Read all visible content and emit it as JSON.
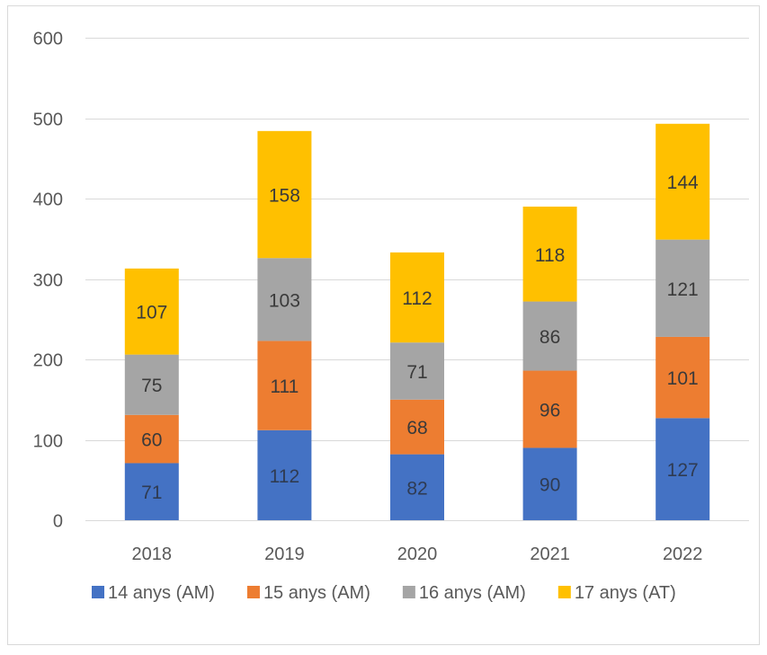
{
  "chart_data": {
    "type": "bar",
    "stacked": true,
    "categories": [
      "2018",
      "2019",
      "2020",
      "2021",
      "2022"
    ],
    "series": [
      {
        "name": "14 anys (AM)",
        "color": "#4472C4",
        "label_color": "#2f3b52",
        "values": [
          71,
          112,
          82,
          90,
          127
        ]
      },
      {
        "name": "15 anys (AM)",
        "color": "#ED7D31",
        "label_color": "#3a3a3a",
        "values": [
          60,
          111,
          68,
          96,
          101
        ]
      },
      {
        "name": "16 anys (AM)",
        "color": "#A5A5A5",
        "label_color": "#3a3a3a",
        "values": [
          75,
          103,
          71,
          86,
          121
        ]
      },
      {
        "name": "17 anys (AT)",
        "color": "#FFC000",
        "label_color": "#3a3a3a",
        "values": [
          107,
          158,
          112,
          118,
          144
        ]
      }
    ],
    "ylim": [
      0,
      600
    ],
    "yticks": [
      0,
      100,
      200,
      300,
      400,
      500,
      600
    ],
    "grid": true,
    "legend_position": "bottom",
    "title": "",
    "xlabel": "",
    "ylabel": ""
  }
}
